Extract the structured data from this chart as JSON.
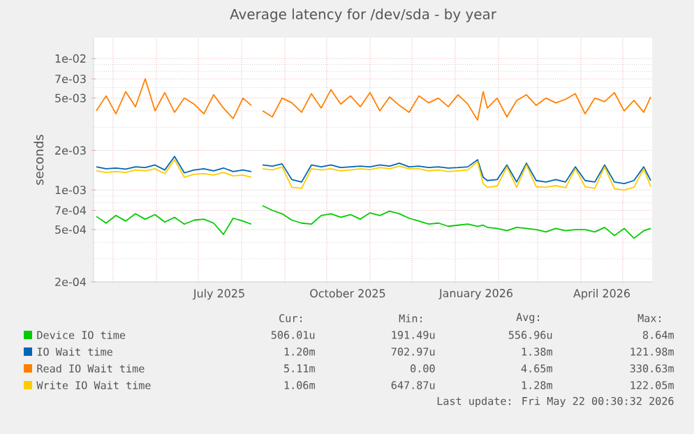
{
  "chart_data": {
    "type": "line",
    "title": "Average latency for /dev/sda - by year",
    "ylabel": "seconds",
    "x": [
      "2025-04-19",
      "2025-04-26",
      "2025-05-03",
      "2025-05-10",
      "2025-05-17",
      "2025-05-24",
      "2025-05-31",
      "2025-06-07",
      "2025-06-14",
      "2025-06-21",
      "2025-06-28",
      "2025-07-05",
      "2025-07-12",
      "2025-07-19",
      "2025-07-26",
      "2025-08-02",
      "2025-08-08",
      "2025-08-12",
      "2025-08-16",
      "2025-08-23",
      "2025-08-30",
      "2025-09-06",
      "2025-09-13",
      "2025-09-20",
      "2025-09-27",
      "2025-10-04",
      "2025-10-11",
      "2025-10-18",
      "2025-10-25",
      "2025-11-01",
      "2025-11-08",
      "2025-11-15",
      "2025-11-22",
      "2025-11-29",
      "2025-12-06",
      "2025-12-13",
      "2025-12-20",
      "2025-12-27",
      "2026-01-03",
      "2026-01-10",
      "2026-01-17",
      "2026-01-21",
      "2026-01-24",
      "2026-01-31",
      "2026-02-07",
      "2026-02-14",
      "2026-02-21",
      "2026-02-28",
      "2026-03-07",
      "2026-03-14",
      "2026-03-21",
      "2026-03-28",
      "2026-04-04",
      "2026-04-11",
      "2026-04-18",
      "2026-04-25",
      "2026-05-02",
      "2026-05-09",
      "2026-05-16",
      "2026-05-21"
    ],
    "series": [
      {
        "name": "Device IO time",
        "color": "#00cc00",
        "values": [
          0.00063,
          0.00056,
          0.00064,
          0.00058,
          0.00066,
          0.0006,
          0.00065,
          0.00057,
          0.00062,
          0.00055,
          0.00059,
          0.0006,
          0.00056,
          0.00046,
          0.00061,
          0.00058,
          0.00055,
          null,
          0.00076,
          0.0007,
          0.00066,
          0.00059,
          0.00056,
          0.00055,
          0.00064,
          0.00066,
          0.00062,
          0.00065,
          0.0006,
          0.00067,
          0.00064,
          0.00069,
          0.00066,
          0.00061,
          0.00058,
          0.00055,
          0.00056,
          0.00053,
          0.00054,
          0.00055,
          0.00053,
          0.00054,
          0.00052,
          0.00051,
          0.00049,
          0.00052,
          0.00051,
          0.0005,
          0.00048,
          0.00051,
          0.00049,
          0.0005,
          0.0005,
          0.00048,
          0.00052,
          0.00045,
          0.00051,
          0.00043,
          0.00049,
          0.00051
        ]
      },
      {
        "name": "IO Wait time",
        "color": "#0066b3",
        "values": [
          0.0015,
          0.00145,
          0.00147,
          0.00144,
          0.0015,
          0.00148,
          0.00155,
          0.00142,
          0.0018,
          0.00135,
          0.00142,
          0.00145,
          0.0014,
          0.00147,
          0.00138,
          0.00142,
          0.00138,
          null,
          0.00155,
          0.00152,
          0.00158,
          0.0012,
          0.00115,
          0.00155,
          0.0015,
          0.00155,
          0.00148,
          0.0015,
          0.00152,
          0.0015,
          0.00155,
          0.00152,
          0.0016,
          0.0015,
          0.00152,
          0.00148,
          0.0015,
          0.00147,
          0.00148,
          0.0015,
          0.0017,
          0.00125,
          0.00118,
          0.0012,
          0.00155,
          0.00115,
          0.0016,
          0.00118,
          0.00115,
          0.0012,
          0.00115,
          0.0015,
          0.00118,
          0.00115,
          0.00155,
          0.00115,
          0.00112,
          0.00118,
          0.0015,
          0.00118
        ]
      },
      {
        "name": "Read IO Wait time",
        "color": "#ff8000",
        "values": [
          0.004,
          0.0052,
          0.0038,
          0.0056,
          0.0043,
          0.007,
          0.004,
          0.0055,
          0.0039,
          0.005,
          0.0045,
          0.0038,
          0.0053,
          0.0042,
          0.0035,
          0.005,
          0.0044,
          null,
          0.004,
          0.0036,
          0.005,
          0.0046,
          0.0039,
          0.0054,
          0.0042,
          0.0058,
          0.0045,
          0.0052,
          0.0043,
          0.0055,
          0.004,
          0.0051,
          0.0044,
          0.0039,
          0.0052,
          0.0046,
          0.005,
          0.0043,
          0.0053,
          0.0045,
          0.0034,
          0.0056,
          0.0042,
          0.005,
          0.0036,
          0.0048,
          0.0053,
          0.0044,
          0.005,
          0.0046,
          0.0049,
          0.0054,
          0.0038,
          0.005,
          0.0047,
          0.0055,
          0.004,
          0.0048,
          0.0039,
          0.0051
        ]
      },
      {
        "name": "Write IO Wait time",
        "color": "#ffcc00",
        "values": [
          0.0014,
          0.00136,
          0.00138,
          0.00136,
          0.00142,
          0.0014,
          0.00145,
          0.00133,
          0.0017,
          0.00125,
          0.00132,
          0.00133,
          0.0013,
          0.00136,
          0.00128,
          0.0013,
          0.00125,
          null,
          0.00145,
          0.00142,
          0.0015,
          0.00105,
          0.00103,
          0.00145,
          0.00142,
          0.00145,
          0.0014,
          0.00142,
          0.00145,
          0.00143,
          0.00148,
          0.00145,
          0.00152,
          0.00145,
          0.00145,
          0.0014,
          0.00142,
          0.00138,
          0.0014,
          0.00142,
          0.00165,
          0.00112,
          0.00105,
          0.00107,
          0.0015,
          0.00105,
          0.00155,
          0.00106,
          0.00105,
          0.00108,
          0.00104,
          0.00145,
          0.00106,
          0.00103,
          0.0015,
          0.00102,
          0.001,
          0.00105,
          0.00145,
          0.00106
        ]
      }
    ],
    "xlim": [
      "2025-04-17",
      "2026-05-22"
    ],
    "ylim": [
      0.0002,
      0.0144
    ],
    "xticks": [
      {
        "value": "2025-05-01",
        "label": null
      },
      {
        "value": "2025-06-01",
        "label": null
      },
      {
        "value": "2025-07-01",
        "label": null
      },
      {
        "value": "2025-08-01",
        "label": null
      },
      {
        "value": "2025-09-01",
        "label": null
      },
      {
        "value": "2025-10-01",
        "label": null
      },
      {
        "value": "2025-11-01",
        "label": null
      },
      {
        "value": "2025-12-01",
        "label": null
      },
      {
        "value": "2026-01-01",
        "label": null
      },
      {
        "value": "2026-02-01",
        "label": null
      },
      {
        "value": "2026-03-01",
        "label": null
      },
      {
        "value": "2026-04-01",
        "label": null
      },
      {
        "value": "2026-05-01",
        "label": null
      },
      {
        "value": "2025-07-16",
        "label": "July 2025"
      },
      {
        "value": "2025-10-16",
        "label": "October 2025"
      },
      {
        "value": "2026-01-16",
        "label": "January 2026"
      },
      {
        "value": "2026-04-16",
        "label": "April 2026"
      }
    ],
    "yticks": [
      {
        "value": 0.0002,
        "label": "2e-04"
      },
      {
        "value": 0.0005,
        "label": "5e-04"
      },
      {
        "value": 0.0007,
        "label": "7e-04"
      },
      {
        "value": 0.001,
        "label": "1e-03"
      },
      {
        "value": 0.002,
        "label": "2e-03"
      },
      {
        "value": 0.005,
        "label": "5e-03"
      },
      {
        "value": 0.007,
        "label": "7e-03"
      },
      {
        "value": 0.01,
        "label": "1e-02"
      },
      {
        "value": 0.0003,
        "label": null
      },
      {
        "value": 0.0004,
        "label": null
      },
      {
        "value": 0.0006,
        "label": null
      },
      {
        "value": 0.0008,
        "label": null
      },
      {
        "value": 0.0009,
        "label": null
      },
      {
        "value": 0.003,
        "label": null
      },
      {
        "value": 0.004,
        "label": null
      },
      {
        "value": 0.006,
        "label": null
      },
      {
        "value": 0.008,
        "label": null
      },
      {
        "value": 0.009,
        "label": null
      }
    ],
    "log": true,
    "grid": true,
    "legend": "bottom",
    "annotations": [
      "Cur:",
      "Min:",
      "Avg:",
      "Max:",
      "506.01u",
      "191.49u",
      "556.96u",
      "8.64m",
      "1.20m",
      "702.97u",
      "1.38m",
      "121.98m",
      "5.11m",
      "0.00",
      "4.65m",
      "330.63m",
      "1.06m",
      "647.87u",
      "1.28m",
      "122.05m",
      "Last update: Fri May 22 00:30:32 2026"
    ]
  }
}
